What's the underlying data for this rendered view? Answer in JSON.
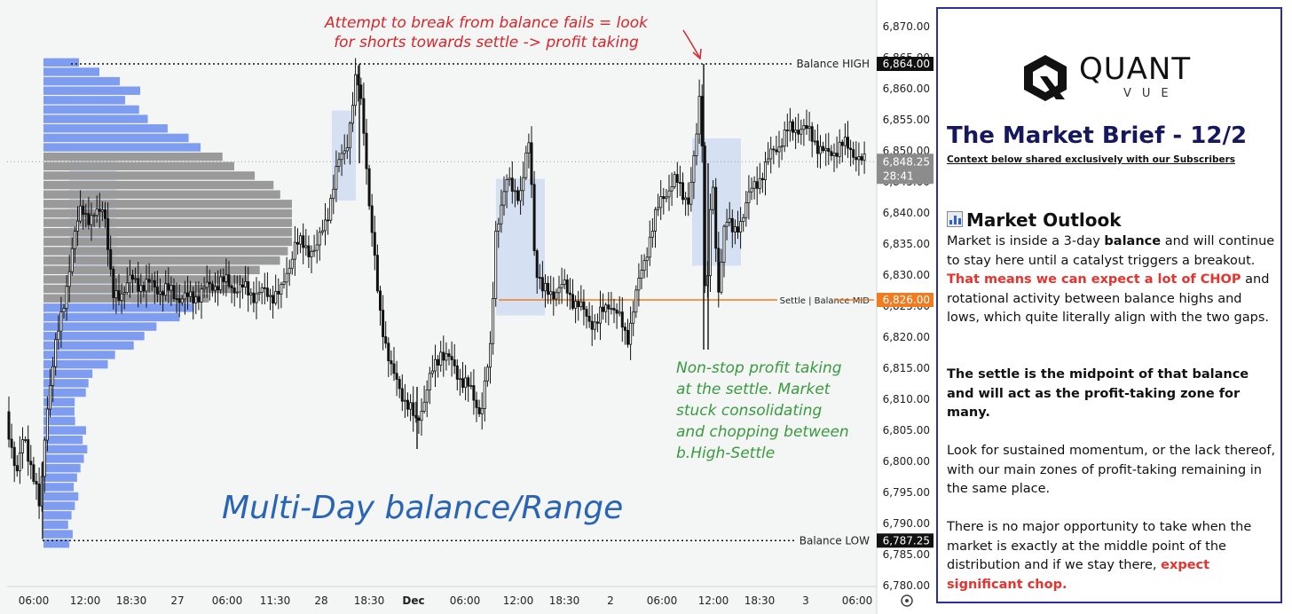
{
  "chart_data": {
    "type": "candlestick",
    "instrument_note": "",
    "y_axis": {
      "ticks": [
        "6,870.00",
        "6,865.00",
        "6,860.00",
        "6,855.00",
        "6,850.00",
        "6,845.00",
        "6,840.00",
        "6,835.00",
        "6,830.00",
        "6,825.00",
        "6,820.00",
        "6,815.00",
        "6,810.00",
        "6,805.00",
        "6,800.00",
        "6,795.00",
        "6,790.00",
        "6,785.00",
        "6,780.00"
      ],
      "range": [
        6779,
        6872
      ]
    },
    "x_axis": {
      "ticks": [
        "06:00",
        "12:00",
        "18:30",
        "27",
        "06:00",
        "11:30",
        "28",
        "18:30",
        "Dec",
        "06:00",
        "12:00",
        "18:30",
        "2",
        "06:00",
        "12:00",
        "18:30",
        "3",
        "06:00"
      ]
    },
    "price_tags": {
      "balance_high": "6,864.00",
      "last_price": "6,848.25",
      "countdown": "28:41",
      "settle": "6,826.00",
      "balance_low": "6,787.25"
    },
    "levels": [
      {
        "label": "Balance HIGH",
        "price": 6864.0,
        "style": "dotted",
        "color": "#111111"
      },
      {
        "label": "Settle | Balance MID",
        "price": 6826.0,
        "style": "solid",
        "color": "#f07c22"
      },
      {
        "label": "Balance LOW",
        "price": 6787.25,
        "style": "dotted",
        "color": "#111111"
      },
      {
        "label": "",
        "price": 6848.25,
        "style": "dotted",
        "color": "#9a9a9a"
      }
    ],
    "annotations": [
      {
        "id": "top",
        "lines": [
          "Attempt to break from balance fails = look",
          "for shorts towards settle -> profit taking"
        ],
        "color": "#d7262b"
      },
      {
        "id": "settle",
        "lines": [
          "Non-stop profit taking",
          "at the settle. Market",
          "stuck consolidating",
          "and chopping between",
          "b.High-Settle"
        ],
        "color": "#3a9a3f"
      },
      {
        "id": "title",
        "lines": [
          "Multi-Day balance/Range"
        ],
        "color": "#2a64b5"
      }
    ],
    "volume_profile": {
      "price_range": [
        6786,
        6865
      ],
      "value_area": [
        6825,
        6850
      ],
      "bins": 52
    },
    "consolidation_zones": 5,
    "colors": {
      "candle": "#111111",
      "profile_blue": "#7f9df0",
      "profile_gray": "#9a9a9a",
      "zone": "#cbdaf2"
    }
  },
  "brief": {
    "logo_word": "QUANT",
    "logo_sub": "VUE",
    "title": "The Market Brief - 12/2",
    "subtitle": "Context below shared exclusively with our Subscribers",
    "outlook_heading": "Market Outlook",
    "p1_a": "Market is inside a 3-day ",
    "p1_b": "balance",
    "p1_c": " and will continue to stay here until a catalyst triggers a breakout. ",
    "p1_d": "That means we can expect a lot of CHOP",
    "p1_e": " and rotational activity between balance highs and lows, which quite literally align with the two gaps.",
    "p2": "The settle is the midpoint of that balance and will act as the profit-taking zone for many.",
    "p3": "Look for sustained momentum, or the lack thereof, with our main zones of profit-taking remaining in the same place.",
    "p4_a": "There is no major opportunity to take when the market is exactly at the middle point of the distribution and if we stay there, ",
    "p4_b": "expect significant chop."
  }
}
